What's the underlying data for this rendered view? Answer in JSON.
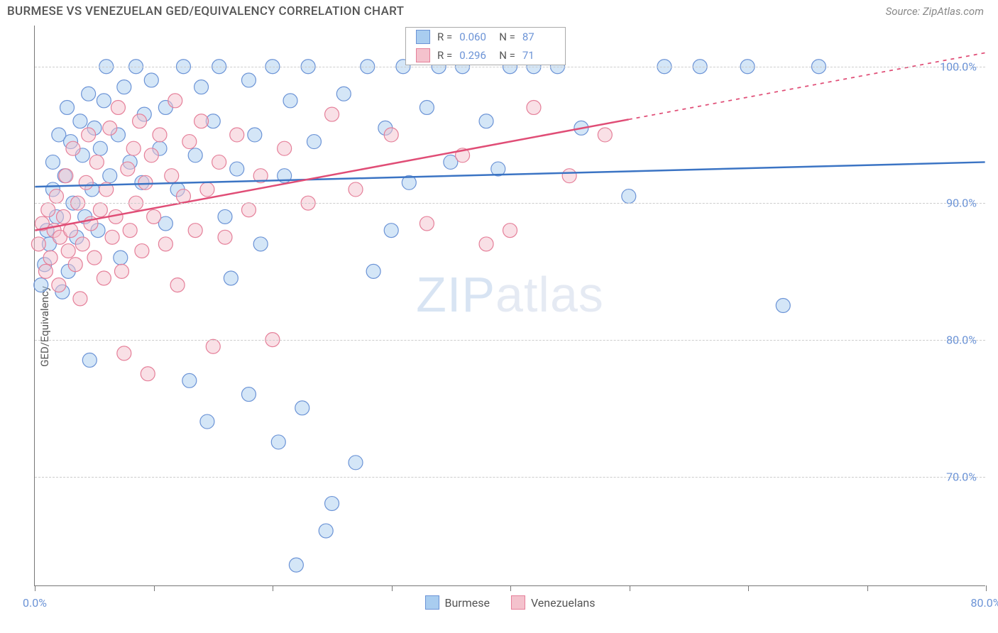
{
  "header": {
    "title": "BURMESE VS VENEZUELAN GED/EQUIVALENCY CORRELATION CHART",
    "source": "Source: ZipAtlas.com"
  },
  "chart": {
    "type": "scatter",
    "y_axis_label": "GED/Equivalency",
    "watermark_bold": "ZIP",
    "watermark_thin": "atlas",
    "background_color": "#ffffff",
    "grid_color": "#cccccc",
    "axis_color": "#777777",
    "text_color": "#555555",
    "tick_label_color": "#6b93d6",
    "xlim": [
      0,
      80
    ],
    "ylim": [
      62,
      103
    ],
    "x_ticks": [
      0,
      10,
      20,
      30,
      40,
      50,
      60,
      70,
      80
    ],
    "x_tick_labels": {
      "0": "0.0%",
      "80": "80.0%"
    },
    "y_ticks": [
      70,
      80,
      90,
      100
    ],
    "y_tick_labels": {
      "70": "70.0%",
      "80": "80.0%",
      "90": "90.0%",
      "100": "100.0%"
    },
    "point_radius": 10,
    "point_opacity": 0.5,
    "point_stroke_width": 1.2,
    "line_width": 2.5,
    "series": [
      {
        "name": "Burmese",
        "fill": "#a9cdf0",
        "stroke": "#6b93d6",
        "line_color": "#3b74c4",
        "R": "0.060",
        "N": "87",
        "trend": {
          "x1": 0,
          "y1": 91.2,
          "x2": 80,
          "y2": 93.0,
          "solid_until_x": 80
        },
        "points": [
          [
            0.5,
            84.0
          ],
          [
            0.8,
            85.5
          ],
          [
            1.0,
            88.0
          ],
          [
            1.2,
            87.0
          ],
          [
            1.5,
            91.0
          ],
          [
            1.5,
            93.0
          ],
          [
            1.8,
            89.0
          ],
          [
            2.0,
            95.0
          ],
          [
            2.3,
            83.5
          ],
          [
            2.5,
            92.0
          ],
          [
            2.7,
            97.0
          ],
          [
            2.8,
            85.0
          ],
          [
            3.0,
            94.5
          ],
          [
            3.2,
            90.0
          ],
          [
            3.5,
            87.5
          ],
          [
            3.8,
            96.0
          ],
          [
            4.0,
            93.5
          ],
          [
            4.2,
            89.0
          ],
          [
            4.5,
            98.0
          ],
          [
            4.6,
            78.5
          ],
          [
            4.8,
            91.0
          ],
          [
            5.0,
            95.5
          ],
          [
            5.3,
            88.0
          ],
          [
            5.5,
            94.0
          ],
          [
            5.8,
            97.5
          ],
          [
            6.0,
            100.0
          ],
          [
            6.3,
            92.0
          ],
          [
            7.0,
            95.0
          ],
          [
            7.2,
            86.0
          ],
          [
            7.5,
            98.5
          ],
          [
            8.0,
            93.0
          ],
          [
            8.5,
            100.0
          ],
          [
            9.0,
            91.5
          ],
          [
            9.2,
            96.5
          ],
          [
            9.8,
            99.0
          ],
          [
            10.5,
            94.0
          ],
          [
            11.0,
            88.5
          ],
          [
            11.0,
            97.0
          ],
          [
            12.0,
            91.0
          ],
          [
            12.5,
            100.0
          ],
          [
            13.0,
            77.0
          ],
          [
            13.5,
            93.5
          ],
          [
            14.0,
            98.5
          ],
          [
            14.5,
            74.0
          ],
          [
            15.0,
            96.0
          ],
          [
            15.5,
            100.0
          ],
          [
            16.0,
            89.0
          ],
          [
            16.5,
            84.5
          ],
          [
            17.0,
            92.5
          ],
          [
            18.0,
            99.0
          ],
          [
            18.0,
            76.0
          ],
          [
            18.5,
            95.0
          ],
          [
            19.0,
            87.0
          ],
          [
            20.0,
            100.0
          ],
          [
            20.5,
            72.5
          ],
          [
            21.0,
            92.0
          ],
          [
            21.5,
            97.5
          ],
          [
            22.0,
            63.5
          ],
          [
            22.5,
            75.0
          ],
          [
            23.0,
            100.0
          ],
          [
            23.5,
            94.5
          ],
          [
            24.5,
            66.0
          ],
          [
            25.0,
            68.0
          ],
          [
            26.0,
            98.0
          ],
          [
            27.0,
            71.0
          ],
          [
            28.0,
            100.0
          ],
          [
            28.5,
            85.0
          ],
          [
            29.5,
            95.5
          ],
          [
            30.0,
            88.0
          ],
          [
            31.0,
            100.0
          ],
          [
            31.5,
            91.5
          ],
          [
            33.0,
            97.0
          ],
          [
            34.0,
            100.0
          ],
          [
            35.0,
            93.0
          ],
          [
            36.0,
            100.0
          ],
          [
            38.0,
            96.0
          ],
          [
            39.0,
            92.5
          ],
          [
            40.0,
            100.0
          ],
          [
            42.0,
            100.0
          ],
          [
            44.0,
            100.0
          ],
          [
            46.0,
            95.5
          ],
          [
            50.0,
            90.5
          ],
          [
            53.0,
            100.0
          ],
          [
            56.0,
            100.0
          ],
          [
            60.0,
            100.0
          ],
          [
            63.0,
            82.5
          ],
          [
            66.0,
            100.0
          ]
        ]
      },
      {
        "name": "Venezuelans",
        "fill": "#f4c2cd",
        "stroke": "#e57f99",
        "line_color": "#e04d76",
        "R": "0.296",
        "N": "71",
        "trend": {
          "x1": 0,
          "y1": 88.0,
          "x2": 80,
          "y2": 101.0,
          "solid_until_x": 50
        },
        "points": [
          [
            0.3,
            87.0
          ],
          [
            0.6,
            88.5
          ],
          [
            0.9,
            85.0
          ],
          [
            1.1,
            89.5
          ],
          [
            1.3,
            86.0
          ],
          [
            1.6,
            88.0
          ],
          [
            1.8,
            90.5
          ],
          [
            2.0,
            84.0
          ],
          [
            2.1,
            87.5
          ],
          [
            2.4,
            89.0
          ],
          [
            2.6,
            92.0
          ],
          [
            2.8,
            86.5
          ],
          [
            3.0,
            88.0
          ],
          [
            3.2,
            94.0
          ],
          [
            3.4,
            85.5
          ],
          [
            3.6,
            90.0
          ],
          [
            3.8,
            83.0
          ],
          [
            4.0,
            87.0
          ],
          [
            4.3,
            91.5
          ],
          [
            4.5,
            95.0
          ],
          [
            4.7,
            88.5
          ],
          [
            5.0,
            86.0
          ],
          [
            5.2,
            93.0
          ],
          [
            5.5,
            89.5
          ],
          [
            5.8,
            84.5
          ],
          [
            6.0,
            91.0
          ],
          [
            6.3,
            95.5
          ],
          [
            6.5,
            87.5
          ],
          [
            6.8,
            89.0
          ],
          [
            7.0,
            97.0
          ],
          [
            7.3,
            85.0
          ],
          [
            7.5,
            79.0
          ],
          [
            7.8,
            92.5
          ],
          [
            8.0,
            88.0
          ],
          [
            8.3,
            94.0
          ],
          [
            8.5,
            90.0
          ],
          [
            8.8,
            96.0
          ],
          [
            9.0,
            86.5
          ],
          [
            9.3,
            91.5
          ],
          [
            9.5,
            77.5
          ],
          [
            9.8,
            93.5
          ],
          [
            10.0,
            89.0
          ],
          [
            10.5,
            95.0
          ],
          [
            11.0,
            87.0
          ],
          [
            11.5,
            92.0
          ],
          [
            11.8,
            97.5
          ],
          [
            12.0,
            84.0
          ],
          [
            12.5,
            90.5
          ],
          [
            13.0,
            94.5
          ],
          [
            13.5,
            88.0
          ],
          [
            14.0,
            96.0
          ],
          [
            14.5,
            91.0
          ],
          [
            15.0,
            79.5
          ],
          [
            15.5,
            93.0
          ],
          [
            16.0,
            87.5
          ],
          [
            17.0,
            95.0
          ],
          [
            18.0,
            89.5
          ],
          [
            19.0,
            92.0
          ],
          [
            20.0,
            80.0
          ],
          [
            21.0,
            94.0
          ],
          [
            23.0,
            90.0
          ],
          [
            25.0,
            96.5
          ],
          [
            27.0,
            91.0
          ],
          [
            30.0,
            95.0
          ],
          [
            33.0,
            88.5
          ],
          [
            36.0,
            93.5
          ],
          [
            38.0,
            87.0
          ],
          [
            40.0,
            88.0
          ],
          [
            42.0,
            97.0
          ],
          [
            45.0,
            92.0
          ],
          [
            48.0,
            95.0
          ]
        ]
      }
    ],
    "legend_stats": {
      "R_label": "R =",
      "N_label": "N ="
    },
    "bottom_legend": [
      "Burmese",
      "Venezuelans"
    ]
  }
}
